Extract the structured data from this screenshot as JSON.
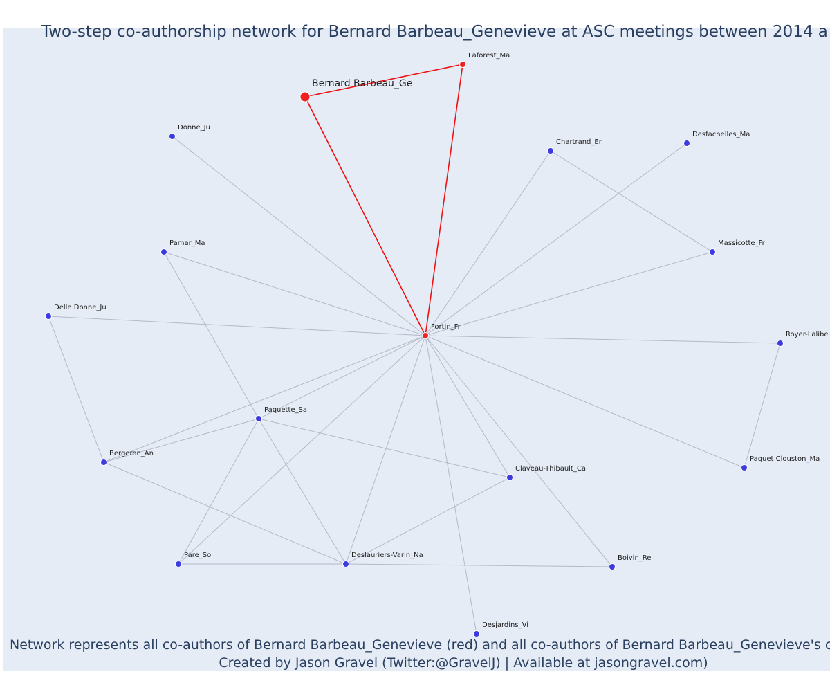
{
  "header": {
    "title": "Two-step co-authorship network for Bernard Barbeau_Genevieve at ASC meetings between 2014 a"
  },
  "footer": {
    "lines": [
      "Network represents all co-authors of Bernard Barbeau_Genevieve (red) and all co-authors of Bernard Barbeau_Genevieve's co-a",
      "Created by Jason Gravel (Twitter:@GravelJ) | Available at jasongravel.com)"
    ]
  },
  "nodes": [
    {
      "label": "Bernard Barbeau_Ge",
      "group": "focal"
    },
    {
      "label": "Laforest_Ma",
      "group": "coauthor"
    },
    {
      "label": "Fortin_Fr",
      "group": "coauthor"
    },
    {
      "label": "Donne_Ju",
      "group": "second"
    },
    {
      "label": "Chartrand_Er",
      "group": "second"
    },
    {
      "label": "Desfachelles_Ma",
      "group": "second"
    },
    {
      "label": "Massicotte_Fr",
      "group": "second"
    },
    {
      "label": "Pamar_Ma",
      "group": "second"
    },
    {
      "label": "Delle Donne_Ju",
      "group": "second"
    },
    {
      "label": "Royer-Lalibe",
      "group": "second"
    },
    {
      "label": "Paquette_Sa",
      "group": "second"
    },
    {
      "label": "Bergeron_An",
      "group": "second"
    },
    {
      "label": "Claveau-Thibault_Ca",
      "group": "second"
    },
    {
      "label": "Paquet Clouston_Ma",
      "group": "second"
    },
    {
      "label": "Pare_So",
      "group": "second"
    },
    {
      "label": "Deslauriers-Varin_Na",
      "group": "second"
    },
    {
      "label": "Boivin_Re",
      "group": "second"
    },
    {
      "label": "Desjardins_Vi",
      "group": "second"
    }
  ],
  "edges": [
    {
      "source": 0,
      "target": 1,
      "kind": "direct"
    },
    {
      "source": 0,
      "target": 2,
      "kind": "direct"
    },
    {
      "source": 1,
      "target": 2,
      "kind": "direct"
    },
    {
      "source": 2,
      "target": 3,
      "kind": "indirect"
    },
    {
      "source": 2,
      "target": 4,
      "kind": "indirect"
    },
    {
      "source": 2,
      "target": 5,
      "kind": "indirect"
    },
    {
      "source": 2,
      "target": 6,
      "kind": "indirect"
    },
    {
      "source": 2,
      "target": 7,
      "kind": "indirect"
    },
    {
      "source": 2,
      "target": 8,
      "kind": "indirect"
    },
    {
      "source": 2,
      "target": 9,
      "kind": "indirect"
    },
    {
      "source": 2,
      "target": 10,
      "kind": "indirect"
    },
    {
      "source": 2,
      "target": 11,
      "kind": "indirect"
    },
    {
      "source": 2,
      "target": 12,
      "kind": "indirect"
    },
    {
      "source": 2,
      "target": 13,
      "kind": "indirect"
    },
    {
      "source": 2,
      "target": 14,
      "kind": "indirect"
    },
    {
      "source": 2,
      "target": 15,
      "kind": "indirect"
    },
    {
      "source": 2,
      "target": 16,
      "kind": "indirect"
    },
    {
      "source": 2,
      "target": 17,
      "kind": "indirect"
    },
    {
      "source": 4,
      "target": 6,
      "kind": "indirect"
    },
    {
      "source": 7,
      "target": 10,
      "kind": "indirect"
    },
    {
      "source": 10,
      "target": 15,
      "kind": "indirect"
    },
    {
      "source": 8,
      "target": 11,
      "kind": "indirect"
    },
    {
      "source": 11,
      "target": 10,
      "kind": "indirect"
    },
    {
      "source": 11,
      "target": 15,
      "kind": "indirect"
    },
    {
      "source": 10,
      "target": 12,
      "kind": "indirect"
    },
    {
      "source": 10,
      "target": 14,
      "kind": "indirect"
    },
    {
      "source": 14,
      "target": 15,
      "kind": "indirect"
    },
    {
      "source": 15,
      "target": 12,
      "kind": "indirect"
    },
    {
      "source": 15,
      "target": 16,
      "kind": "indirect"
    },
    {
      "source": 9,
      "target": 13,
      "kind": "indirect"
    }
  ]
}
